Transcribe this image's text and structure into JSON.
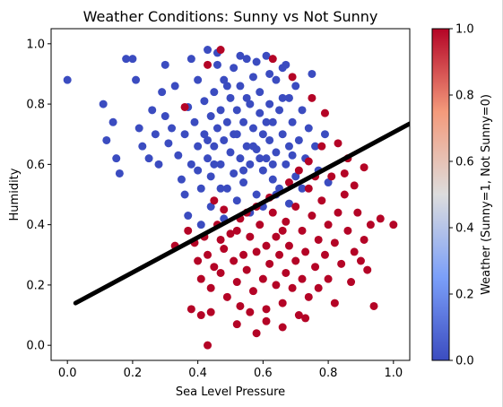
{
  "chart_data": {
    "type": "scatter",
    "title": "Weather Conditions: Sunny vs Not Sunny",
    "xlabel": "Sea Level Pressure",
    "ylabel": "Humidity",
    "xlim": [
      -0.05,
      1.05
    ],
    "ylim": [
      -0.05,
      1.05
    ],
    "xticks": [
      "0.0",
      "0.2",
      "0.4",
      "0.6",
      "0.8",
      "1.0"
    ],
    "yticks": [
      "0.0",
      "0.2",
      "0.4",
      "0.6",
      "0.8",
      "1.0"
    ],
    "colorbar": {
      "label": "Weather (Sunny=1, Not Sunny=0)",
      "range": [
        0.0,
        1.0
      ],
      "ticks": [
        "0.0",
        "0.2",
        "0.4",
        "0.6",
        "0.8",
        "1.0"
      ],
      "colormap": "coolwarm"
    },
    "colors": {
      "sunny": "#b40426",
      "not_sunny": "#3b4cc0",
      "line": "#000000"
    },
    "trend_line": {
      "x": [
        0.025,
        1.05
      ],
      "y": [
        0.14,
        0.735
      ]
    },
    "series": [
      {
        "weather": 0,
        "points": [
          [
            0.0,
            0.88
          ],
          [
            0.11,
            0.8
          ],
          [
            0.12,
            0.68
          ],
          [
            0.14,
            0.74
          ],
          [
            0.15,
            0.62
          ],
          [
            0.18,
            0.95
          ],
          [
            0.2,
            0.95
          ],
          [
            0.21,
            0.88
          ],
          [
            0.22,
            0.72
          ],
          [
            0.23,
            0.66
          ],
          [
            0.16,
            0.57
          ],
          [
            0.25,
            0.62
          ],
          [
            0.26,
            0.78
          ],
          [
            0.27,
            0.7
          ],
          [
            0.28,
            0.6
          ],
          [
            0.29,
            0.84
          ],
          [
            0.3,
            0.76
          ],
          [
            0.3,
            0.93
          ],
          [
            0.31,
            0.67
          ],
          [
            0.32,
            0.72
          ],
          [
            0.33,
            0.86
          ],
          [
            0.34,
            0.63
          ],
          [
            0.35,
            0.55
          ],
          [
            0.36,
            0.7
          ],
          [
            0.37,
            0.79
          ],
          [
            0.38,
            0.95
          ],
          [
            0.38,
            0.6
          ],
          [
            0.39,
            0.74
          ],
          [
            0.4,
            0.88
          ],
          [
            0.4,
            0.66
          ],
          [
            0.41,
            0.52
          ],
          [
            0.42,
            0.81
          ],
          [
            0.42,
            0.7
          ],
          [
            0.43,
            0.98
          ],
          [
            0.43,
            0.62
          ],
          [
            0.44,
            0.76
          ],
          [
            0.44,
            0.56
          ],
          [
            0.45,
            0.84
          ],
          [
            0.45,
            0.66
          ],
          [
            0.46,
            0.72
          ],
          [
            0.46,
            0.93
          ],
          [
            0.47,
            0.6
          ],
          [
            0.47,
            0.78
          ],
          [
            0.48,
            0.88
          ],
          [
            0.48,
            0.68
          ],
          [
            0.49,
            0.52
          ],
          [
            0.49,
            0.74
          ],
          [
            0.5,
            0.82
          ],
          [
            0.5,
            0.64
          ],
          [
            0.51,
            0.92
          ],
          [
            0.51,
            0.57
          ],
          [
            0.52,
            0.78
          ],
          [
            0.52,
            0.7
          ],
          [
            0.53,
            0.86
          ],
          [
            0.53,
            0.62
          ],
          [
            0.54,
            0.74
          ],
          [
            0.54,
            0.54
          ],
          [
            0.55,
            0.95
          ],
          [
            0.55,
            0.66
          ],
          [
            0.56,
            0.8
          ],
          [
            0.56,
            0.6
          ],
          [
            0.57,
            0.72
          ],
          [
            0.57,
            0.89
          ],
          [
            0.58,
            0.65
          ],
          [
            0.58,
            0.5
          ],
          [
            0.59,
            0.77
          ],
          [
            0.59,
            0.84
          ],
          [
            0.6,
            0.58
          ],
          [
            0.6,
            0.7
          ],
          [
            0.61,
            0.96
          ],
          [
            0.61,
            0.62
          ],
          [
            0.62,
            0.8
          ],
          [
            0.62,
            0.68
          ],
          [
            0.63,
            0.74
          ],
          [
            0.63,
            0.55
          ],
          [
            0.64,
            0.88
          ],
          [
            0.64,
            0.64
          ],
          [
            0.65,
            0.78
          ],
          [
            0.65,
            0.52
          ],
          [
            0.66,
            0.7
          ],
          [
            0.66,
            0.92
          ],
          [
            0.67,
            0.6
          ],
          [
            0.68,
            0.82
          ],
          [
            0.68,
            0.66
          ],
          [
            0.69,
            0.74
          ],
          [
            0.7,
            0.56
          ],
          [
            0.7,
            0.86
          ],
          [
            0.71,
            0.68
          ],
          [
            0.72,
            0.78
          ],
          [
            0.73,
            0.62
          ],
          [
            0.74,
            0.72
          ],
          [
            0.75,
            0.9
          ],
          [
            0.76,
            0.66
          ],
          [
            0.77,
            0.58
          ],
          [
            0.79,
            0.7
          ],
          [
            0.8,
            0.54
          ],
          [
            0.37,
            0.43
          ],
          [
            0.41,
            0.4
          ],
          [
            0.44,
            0.46
          ],
          [
            0.48,
            0.42
          ],
          [
            0.52,
            0.48
          ],
          [
            0.56,
            0.44
          ],
          [
            0.6,
            0.46
          ],
          [
            0.64,
            0.5
          ],
          [
            0.68,
            0.47
          ],
          [
            0.72,
            0.52
          ],
          [
            0.53,
            0.96
          ],
          [
            0.58,
            0.94
          ],
          [
            0.67,
            0.93
          ],
          [
            0.46,
            0.97
          ],
          [
            0.62,
            0.9
          ],
          [
            0.55,
            0.82
          ],
          [
            0.49,
            0.86
          ],
          [
            0.57,
            0.66
          ],
          [
            0.51,
            0.7
          ],
          [
            0.45,
            0.6
          ],
          [
            0.61,
            0.74
          ],
          [
            0.66,
            0.82
          ],
          [
            0.43,
            0.68
          ],
          [
            0.59,
            0.62
          ],
          [
            0.54,
            0.58
          ],
          [
            0.47,
            0.52
          ],
          [
            0.63,
            0.6
          ],
          [
            0.69,
            0.63
          ],
          [
            0.4,
            0.58
          ],
          [
            0.36,
            0.5
          ]
        ]
      },
      {
        "weather": 1,
        "points": [
          [
            0.33,
            0.33
          ],
          [
            0.38,
            0.12
          ],
          [
            0.41,
            0.1
          ],
          [
            0.43,
            0.0
          ],
          [
            0.47,
            0.35
          ],
          [
            0.4,
            0.28
          ],
          [
            0.41,
            0.22
          ],
          [
            0.43,
            0.3
          ],
          [
            0.44,
            0.19
          ],
          [
            0.45,
            0.26
          ],
          [
            0.46,
            0.4
          ],
          [
            0.47,
            0.24
          ],
          [
            0.48,
            0.32
          ],
          [
            0.49,
            0.16
          ],
          [
            0.5,
            0.37
          ],
          [
            0.51,
            0.28
          ],
          [
            0.52,
            0.21
          ],
          [
            0.53,
            0.42
          ],
          [
            0.53,
            0.13
          ],
          [
            0.54,
            0.3
          ],
          [
            0.55,
            0.25
          ],
          [
            0.56,
            0.36
          ],
          [
            0.57,
            0.18
          ],
          [
            0.58,
            0.04
          ],
          [
            0.58,
            0.31
          ],
          [
            0.59,
            0.4
          ],
          [
            0.6,
            0.22
          ],
          [
            0.61,
            0.33
          ],
          [
            0.61,
            0.12
          ],
          [
            0.62,
            0.27
          ],
          [
            0.63,
            0.44
          ],
          [
            0.64,
            0.2
          ],
          [
            0.64,
            0.36
          ],
          [
            0.65,
            0.3
          ],
          [
            0.66,
            0.14
          ],
          [
            0.67,
            0.41
          ],
          [
            0.67,
            0.24
          ],
          [
            0.68,
            0.33
          ],
          [
            0.69,
            0.19
          ],
          [
            0.7,
            0.46
          ],
          [
            0.7,
            0.28
          ],
          [
            0.71,
            0.1
          ],
          [
            0.72,
            0.38
          ],
          [
            0.72,
            0.22
          ],
          [
            0.73,
            0.31
          ],
          [
            0.74,
            0.52
          ],
          [
            0.74,
            0.16
          ],
          [
            0.75,
            0.43
          ],
          [
            0.76,
            0.26
          ],
          [
            0.77,
            0.35
          ],
          [
            0.77,
            0.19
          ],
          [
            0.78,
            0.48
          ],
          [
            0.79,
            0.3
          ],
          [
            0.8,
            0.4
          ],
          [
            0.8,
            0.22
          ],
          [
            0.81,
            0.56
          ],
          [
            0.82,
            0.34
          ],
          [
            0.82,
            0.14
          ],
          [
            0.83,
            0.44
          ],
          [
            0.84,
            0.27
          ],
          [
            0.85,
            0.5
          ],
          [
            0.86,
            0.38
          ],
          [
            0.87,
            0.21
          ],
          [
            0.88,
            0.31
          ],
          [
            0.89,
            0.44
          ],
          [
            0.9,
            0.28
          ],
          [
            0.91,
            0.35
          ],
          [
            0.92,
            0.25
          ],
          [
            0.93,
            0.4
          ],
          [
            0.94,
            0.13
          ],
          [
            0.96,
            0.42
          ],
          [
            1.0,
            0.4
          ],
          [
            0.86,
            0.62
          ],
          [
            0.91,
            0.59
          ],
          [
            0.83,
            0.67
          ],
          [
            0.78,
            0.66
          ],
          [
            0.85,
            0.57
          ],
          [
            0.88,
            0.53
          ],
          [
            0.74,
            0.61
          ],
          [
            0.71,
            0.58
          ],
          [
            0.76,
            0.56
          ],
          [
            0.68,
            0.54
          ],
          [
            0.66,
            0.38
          ],
          [
            0.62,
            0.49
          ],
          [
            0.58,
            0.46
          ],
          [
            0.55,
            0.44
          ],
          [
            0.52,
            0.38
          ],
          [
            0.48,
            0.45
          ],
          [
            0.45,
            0.48
          ],
          [
            0.42,
            0.36
          ],
          [
            0.39,
            0.34
          ],
          [
            0.37,
            0.38
          ],
          [
            0.44,
            0.11
          ],
          [
            0.52,
            0.07
          ],
          [
            0.56,
            0.11
          ],
          [
            0.61,
            0.08
          ],
          [
            0.66,
            0.06
          ],
          [
            0.73,
            0.09
          ],
          [
            0.47,
            0.98
          ],
          [
            0.43,
            0.93
          ],
          [
            0.63,
            0.95
          ],
          [
            0.69,
            0.89
          ],
          [
            0.75,
            0.82
          ],
          [
            0.79,
            0.77
          ],
          [
            0.36,
            0.79
          ]
        ]
      }
    ]
  }
}
